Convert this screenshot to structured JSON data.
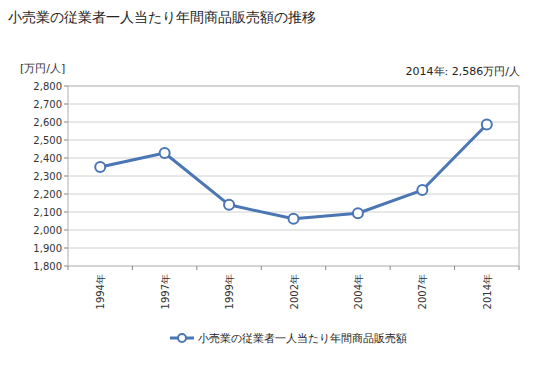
{
  "chart_data": {
    "type": "line",
    "title": "小売業の従業者一人当たり年間商品販売額の推移",
    "y_label": "[万円/人]",
    "annotation": "2014年: 2,586万円/人",
    "categories": [
      "1994年",
      "1997年",
      "1999年",
      "2002年",
      "2004年",
      "2007年",
      "2014年"
    ],
    "series": [
      {
        "name": "小売業の従業者一人当たり年間商品販売額",
        "color": "#4a76b4",
        "marker": "circle",
        "values": [
          2350,
          2428,
          2140,
          2062,
          2093,
          2222,
          2586
        ]
      }
    ],
    "ylim": [
      1800,
      2800
    ],
    "yticks": [
      {
        "value": 1800,
        "label": "1,800"
      },
      {
        "value": 1900,
        "label": "1,900"
      },
      {
        "value": 2000,
        "label": "2,000"
      },
      {
        "value": 2100,
        "label": "2,100"
      },
      {
        "value": 2200,
        "label": "2,200"
      },
      {
        "value": 2300,
        "label": "2,300"
      },
      {
        "value": 2400,
        "label": "2,400"
      },
      {
        "value": 2500,
        "label": "2,500"
      },
      {
        "value": 2600,
        "label": "2,600"
      },
      {
        "value": 2700,
        "label": "2,700"
      },
      {
        "value": 2800,
        "label": "2,800"
      }
    ],
    "grid": true,
    "legend": "bottom"
  }
}
